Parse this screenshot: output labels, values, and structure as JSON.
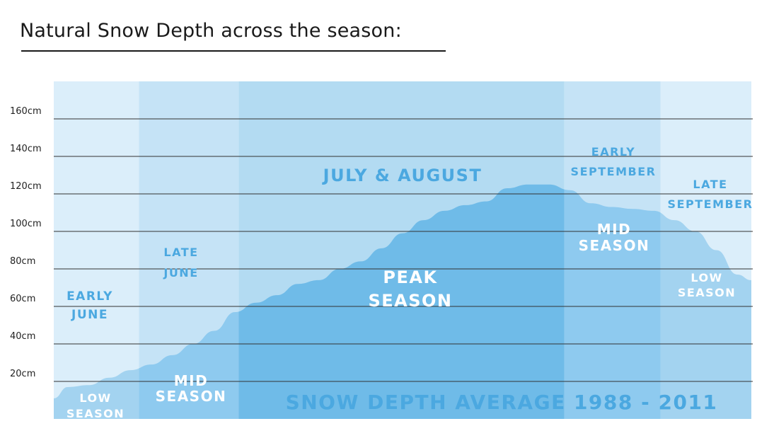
{
  "title": "Natural Snow Depth across the season:",
  "chart_data": {
    "type": "area",
    "title": "Natural Snow Depth across the season:",
    "y_ticks": [
      "20cm",
      "40cm",
      "60cm",
      "80cm",
      "100cm",
      "120cm",
      "140cm",
      "160cm"
    ],
    "y_tick_values": [
      20,
      40,
      60,
      80,
      100,
      120,
      140,
      160
    ],
    "ylim": [
      0,
      180
    ],
    "grid": true,
    "series_label": "SNOW DEPTH AVERAGE 1988 - 2011",
    "x_range": [
      0,
      100
    ],
    "x": [
      0,
      2,
      5,
      8,
      11,
      14,
      17,
      20,
      23,
      26,
      29,
      32,
      35,
      38,
      41,
      44,
      47,
      50,
      53,
      56,
      59,
      62,
      65,
      68,
      71,
      74,
      77,
      80,
      83,
      86,
      89,
      92,
      95,
      98,
      100
    ],
    "values": [
      11,
      17,
      18,
      22,
      26,
      29,
      34,
      40,
      47,
      57,
      62,
      66,
      72,
      74,
      80,
      84,
      91,
      99,
      106,
      111,
      114,
      116,
      123,
      125,
      125,
      122,
      115,
      113,
      112,
      111,
      106,
      100,
      90,
      77,
      74
    ],
    "colors": {
      "band_light": "#dbeefa",
      "band_mid": "#c5e3f6",
      "band_peak": "#b3dbf2",
      "area_light": "#a3d3f0",
      "area_mid": "#8ecaef",
      "area_peak": "#6fbbe8",
      "label_blue": "#4ba8e0",
      "label_white": "#ffffff"
    },
    "bands": [
      {
        "id": "early-june",
        "period": "EARLY JUNE",
        "period_lines": [
          "EARLY",
          "JUNE"
        ],
        "season_lines": [
          "LOW",
          "SEASON"
        ],
        "start": 0,
        "end": 12.2,
        "tone": "light"
      },
      {
        "id": "late-june",
        "period": "LATE JUNE",
        "period_lines": [
          "LATE",
          "JUNE"
        ],
        "season_lines": [
          "MID",
          "SEASON"
        ],
        "start": 12.2,
        "end": 26.5,
        "tone": "mid"
      },
      {
        "id": "july-august",
        "period": "JULY & AUGUST",
        "period_lines": [
          "JULY & AUGUST"
        ],
        "season_lines": [
          "PEAK",
          "SEASON"
        ],
        "start": 26.5,
        "end": 73.2,
        "tone": "peak"
      },
      {
        "id": "early-september",
        "period": "EARLY SEPTEMBER",
        "period_lines": [
          "EARLY",
          "SEPTEMBER"
        ],
        "season_lines": [
          "MID",
          "SEASON"
        ],
        "start": 73.2,
        "end": 87,
        "tone": "mid"
      },
      {
        "id": "late-september",
        "period": "LATE SEPTEMBER",
        "period_lines": [
          "LATE",
          "SEPTEMBER"
        ],
        "season_lines": [
          "LOW",
          "SEASON"
        ],
        "start": 87,
        "end": 100,
        "tone": "light"
      }
    ]
  }
}
